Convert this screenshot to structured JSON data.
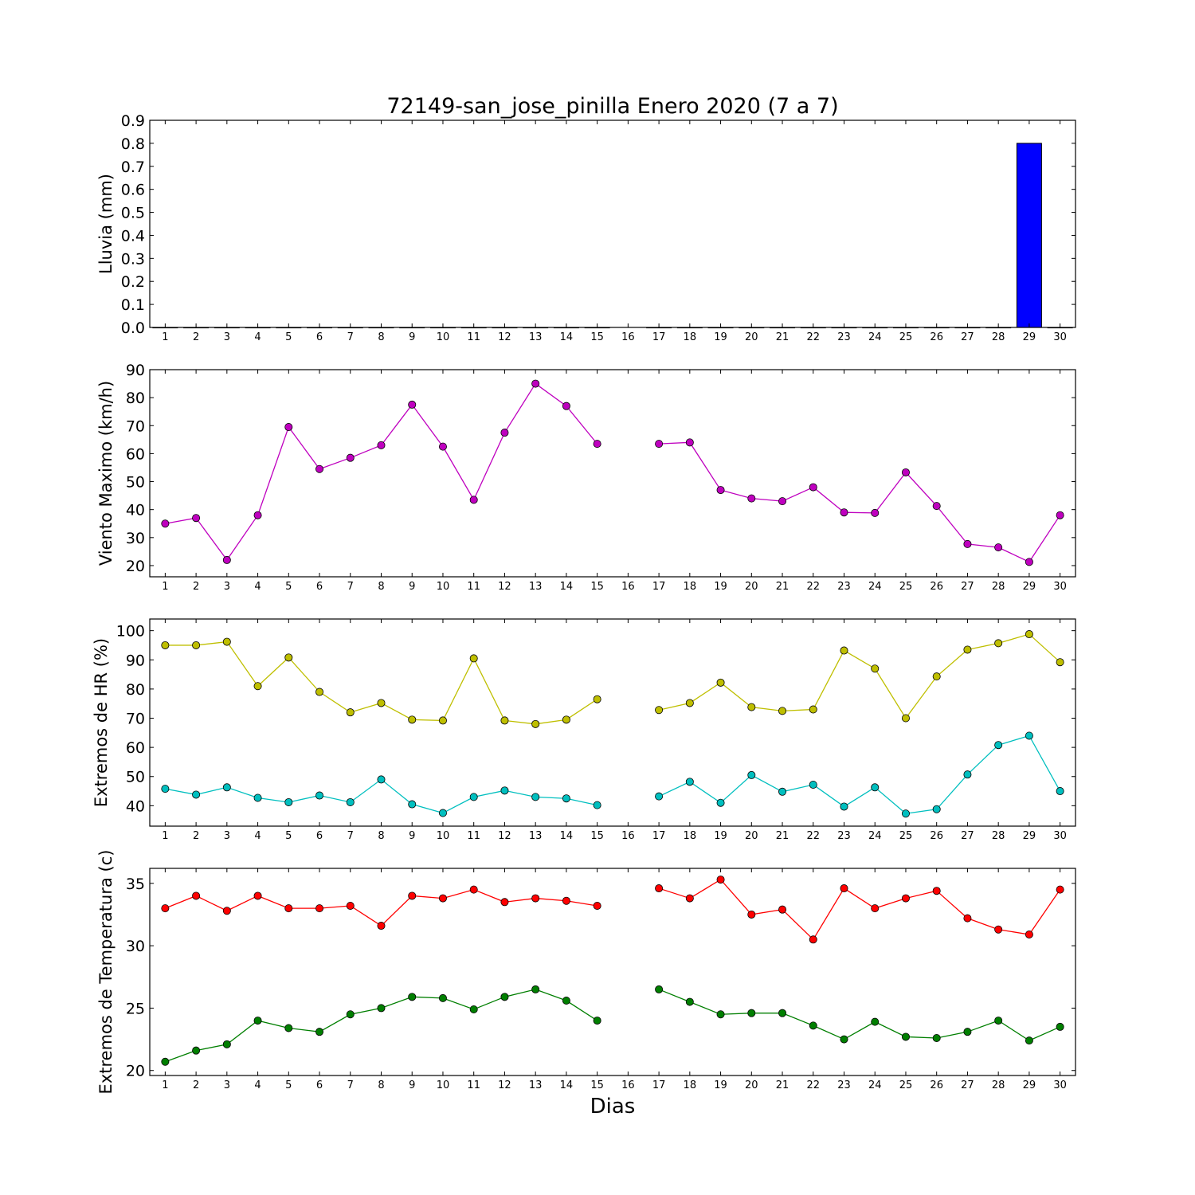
{
  "title": "72149-san_jose_pinilla Enero 2020  (7 a 7)",
  "xlabel": "Dias",
  "chart_data": [
    {
      "type": "bar",
      "ylabel": "Lluvia (mm)",
      "ylim": [
        0,
        0.9
      ],
      "yticks": [
        "0.0",
        "0.1",
        "0.2",
        "0.3",
        "0.4",
        "0.5",
        "0.6",
        "0.7",
        "0.8",
        "0.9"
      ],
      "xlim": [
        0.5,
        30.5
      ],
      "xticks": [
        "1",
        "2",
        "3",
        "4",
        "5",
        "6",
        "7",
        "8",
        "9",
        "10",
        "11",
        "12",
        "13",
        "14",
        "15",
        "16",
        "17",
        "18",
        "19",
        "20",
        "21",
        "22",
        "23",
        "24",
        "25",
        "26",
        "27",
        "28",
        "29",
        "30"
      ],
      "series": [
        {
          "color": "#0000ff",
          "x": [
            1,
            2,
            3,
            4,
            5,
            6,
            7,
            8,
            9,
            10,
            11,
            12,
            13,
            14,
            15,
            17,
            18,
            19,
            20,
            21,
            22,
            23,
            24,
            25,
            26,
            27,
            28,
            29,
            30
          ],
          "values": [
            0,
            0,
            0,
            0,
            0,
            0,
            0,
            0,
            0,
            0,
            0,
            0,
            0,
            0,
            0,
            0,
            0,
            0,
            0,
            0,
            0,
            0,
            0,
            0,
            0,
            0,
            0,
            0.8,
            0
          ]
        }
      ]
    },
    {
      "type": "line",
      "ylabel": "Viento Maximo (km/h)",
      "ylim": [
        16,
        90
      ],
      "yticks": [
        "20",
        "30",
        "40",
        "50",
        "60",
        "70",
        "80",
        "90"
      ],
      "xlim": [
        0.5,
        30.5
      ],
      "xticks": [
        "1",
        "2",
        "3",
        "4",
        "5",
        "6",
        "7",
        "8",
        "9",
        "10",
        "11",
        "12",
        "13",
        "14",
        "15",
        "16",
        "17",
        "18",
        "19",
        "20",
        "21",
        "22",
        "23",
        "24",
        "25",
        "26",
        "27",
        "28",
        "29",
        "30"
      ],
      "series": [
        {
          "color": "#bf00bf",
          "x": [
            1,
            2,
            3,
            4,
            5,
            6,
            7,
            8,
            9,
            10,
            11,
            12,
            13,
            14,
            15,
            16,
            17,
            18,
            19,
            20,
            21,
            22,
            23,
            24,
            25,
            26,
            27,
            28,
            29,
            30
          ],
          "values": [
            35,
            37,
            22,
            38,
            69.5,
            54.5,
            58.5,
            63,
            77.5,
            62.5,
            43.5,
            67.5,
            85,
            77,
            63.5,
            null,
            63.5,
            64,
            47,
            44,
            43,
            48,
            39,
            38.8,
            53.3,
            41.3,
            27.7,
            26.5,
            21.3,
            38
          ]
        }
      ]
    },
    {
      "type": "line",
      "ylabel": "Extremos de HR (%)",
      "ylim": [
        33,
        104
      ],
      "yticks": [
        "40",
        "50",
        "60",
        "70",
        "80",
        "90",
        "100"
      ],
      "xlim": [
        0.5,
        30.5
      ],
      "xticks": [
        "1",
        "2",
        "3",
        "4",
        "5",
        "6",
        "7",
        "8",
        "9",
        "10",
        "11",
        "12",
        "13",
        "14",
        "15",
        "16",
        "17",
        "18",
        "19",
        "20",
        "21",
        "22",
        "23",
        "24",
        "25",
        "26",
        "27",
        "28",
        "29",
        "30"
      ],
      "series": [
        {
          "color": "#bfbf00",
          "x": [
            1,
            2,
            3,
            4,
            5,
            6,
            7,
            8,
            9,
            10,
            11,
            12,
            13,
            14,
            15,
            16,
            17,
            18,
            19,
            20,
            21,
            22,
            23,
            24,
            25,
            26,
            27,
            28,
            29,
            30
          ],
          "values": [
            95,
            95,
            96.2,
            81,
            90.8,
            79,
            72,
            75.2,
            69.5,
            69.2,
            90.5,
            69.2,
            68,
            69.5,
            76.5,
            null,
            72.8,
            75.2,
            82.2,
            73.8,
            72.5,
            73,
            93.2,
            87,
            70,
            84.3,
            93.5,
            95.7,
            98.8,
            89.2
          ]
        },
        {
          "color": "#00bfbf",
          "x": [
            1,
            2,
            3,
            4,
            5,
            6,
            7,
            8,
            9,
            10,
            11,
            12,
            13,
            14,
            15,
            16,
            17,
            18,
            19,
            20,
            21,
            22,
            23,
            24,
            25,
            26,
            27,
            28,
            29,
            30
          ],
          "values": [
            45.8,
            43.8,
            46.3,
            42.7,
            41.2,
            43.5,
            41.2,
            49,
            40.5,
            37.5,
            43,
            45.2,
            43,
            42.5,
            40.2,
            null,
            43.2,
            48.2,
            41,
            50.5,
            44.8,
            47.2,
            39.7,
            46.3,
            37.3,
            38.8,
            50.7,
            60.8,
            64,
            45
          ]
        }
      ]
    },
    {
      "type": "line",
      "ylabel": "Extremos de Temperatura (c)",
      "ylim": [
        19.6,
        36.2
      ],
      "yticks": [
        "20",
        "25",
        "30",
        "35"
      ],
      "xlim": [
        0.5,
        30.5
      ],
      "xticks": [
        "1",
        "2",
        "3",
        "4",
        "5",
        "6",
        "7",
        "8",
        "9",
        "10",
        "11",
        "12",
        "13",
        "14",
        "15",
        "16",
        "17",
        "18",
        "19",
        "20",
        "21",
        "22",
        "23",
        "24",
        "25",
        "26",
        "27",
        "28",
        "29",
        "30"
      ],
      "series": [
        {
          "color": "#ff0000",
          "x": [
            1,
            2,
            3,
            4,
            5,
            6,
            7,
            8,
            9,
            10,
            11,
            12,
            13,
            14,
            15,
            16,
            17,
            18,
            19,
            20,
            21,
            22,
            23,
            24,
            25,
            26,
            27,
            28,
            29,
            30
          ],
          "values": [
            33,
            34,
            32.8,
            34,
            33,
            33,
            33.2,
            31.6,
            34,
            33.8,
            34.5,
            33.5,
            33.8,
            33.6,
            33.2,
            null,
            34.6,
            33.8,
            35.3,
            32.5,
            32.9,
            30.5,
            34.6,
            33,
            33.8,
            34.4,
            32.2,
            31.3,
            30.9,
            34.5
          ]
        },
        {
          "color": "#007f00",
          "x": [
            1,
            2,
            3,
            4,
            5,
            6,
            7,
            8,
            9,
            10,
            11,
            12,
            13,
            14,
            15,
            16,
            17,
            18,
            19,
            20,
            21,
            22,
            23,
            24,
            25,
            26,
            27,
            28,
            29,
            30
          ],
          "values": [
            20.7,
            21.6,
            22.1,
            24,
            23.4,
            23.1,
            24.5,
            25,
            25.9,
            25.8,
            24.9,
            25.9,
            26.5,
            25.6,
            24,
            null,
            26.5,
            25.5,
            24.5,
            24.6,
            24.6,
            23.6,
            22.5,
            23.9,
            22.7,
            22.6,
            23.1,
            24,
            22.4,
            23.5
          ]
        }
      ]
    }
  ]
}
